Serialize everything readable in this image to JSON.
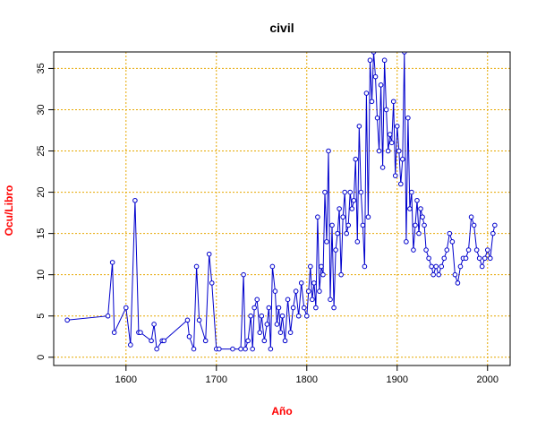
{
  "chart_data": {
    "type": "line",
    "title": "civil",
    "xlabel": "Año",
    "ylabel": "Ocu/Libro",
    "xlim": [
      1520,
      2025
    ],
    "ylim": [
      -1,
      37
    ],
    "x_ticks": [
      1600,
      1700,
      1800,
      1900,
      2000
    ],
    "y_ticks": [
      0,
      5,
      10,
      15,
      20,
      25,
      30,
      35
    ],
    "grid": true,
    "colors": {
      "line": "#0000cc",
      "points": "#0000cc",
      "grid": "#e6a800",
      "axis_label": "#ff0000"
    },
    "series": [
      {
        "x": [
          1535,
          1580,
          1585,
          1587,
          1600,
          1605,
          1610,
          1614,
          1616,
          1628,
          1631,
          1634,
          1640,
          1642,
          1668,
          1670,
          1675,
          1678,
          1681,
          1688,
          1692,
          1695,
          1700,
          1703,
          1718,
          1727,
          1730,
          1732,
          1735,
          1738,
          1740,
          1742,
          1745,
          1748,
          1750,
          1753,
          1756,
          1758,
          1760,
          1762,
          1765,
          1767,
          1769,
          1771,
          1773,
          1776,
          1779,
          1782,
          1785,
          1788,
          1791,
          1794,
          1797,
          1800,
          1802,
          1804,
          1806,
          1808,
          1810,
          1812,
          1814,
          1816,
          1818,
          1820,
          1822,
          1824,
          1826,
          1828,
          1830,
          1832,
          1834,
          1836,
          1838,
          1840,
          1842,
          1844,
          1846,
          1848,
          1850,
          1852,
          1854,
          1856,
          1858,
          1860,
          1862,
          1864,
          1866,
          1868,
          1870,
          1872,
          1874,
          1876,
          1878,
          1880,
          1882,
          1884,
          1886,
          1888,
          1890,
          1892,
          1894,
          1896,
          1898,
          1900,
          1902,
          1904,
          1906,
          1908,
          1910,
          1912,
          1914,
          1916,
          1918,
          1920,
          1922,
          1924,
          1926,
          1928,
          1930,
          1932,
          1935,
          1938,
          1940,
          1943,
          1946,
          1949,
          1952,
          1955,
          1958,
          1961,
          1964,
          1967,
          1970,
          1973,
          1976,
          1979,
          1982,
          1985,
          1988,
          1991,
          1994,
          1997,
          2000,
          2003,
          2006,
          2008
        ],
        "y": [
          4.5,
          5,
          11.5,
          3,
          6,
          1.5,
          19,
          3,
          3,
          2,
          4,
          1,
          2,
          2,
          4.5,
          2.5,
          1,
          11,
          4.5,
          2,
          12.5,
          9,
          1,
          1,
          1,
          1,
          10,
          1,
          2,
          5,
          1,
          6,
          7,
          3,
          5,
          2,
          4,
          6,
          1,
          11,
          8,
          4,
          6,
          3,
          5,
          2,
          7,
          3,
          6,
          8,
          5,
          9,
          6,
          5,
          8,
          11,
          7,
          9,
          6,
          17,
          8,
          11,
          10,
          20,
          14,
          25,
          7,
          16,
          6,
          13,
          15,
          18,
          10,
          17,
          20,
          15,
          16,
          20,
          18,
          19,
          24,
          14,
          28,
          20,
          16,
          11,
          32,
          17,
          36,
          31,
          37,
          34,
          29,
          25,
          33,
          23,
          36,
          30,
          25,
          27,
          26,
          31,
          22,
          28,
          25,
          21,
          24,
          37,
          14,
          29,
          18,
          20,
          13,
          16,
          19,
          15,
          18,
          17,
          16,
          13,
          12,
          11,
          10,
          11,
          10,
          11,
          12,
          13,
          15,
          14,
          10,
          9,
          11,
          12,
          12,
          13,
          17,
          16,
          13,
          12,
          11,
          12,
          13,
          12,
          15,
          16
        ]
      }
    ]
  }
}
